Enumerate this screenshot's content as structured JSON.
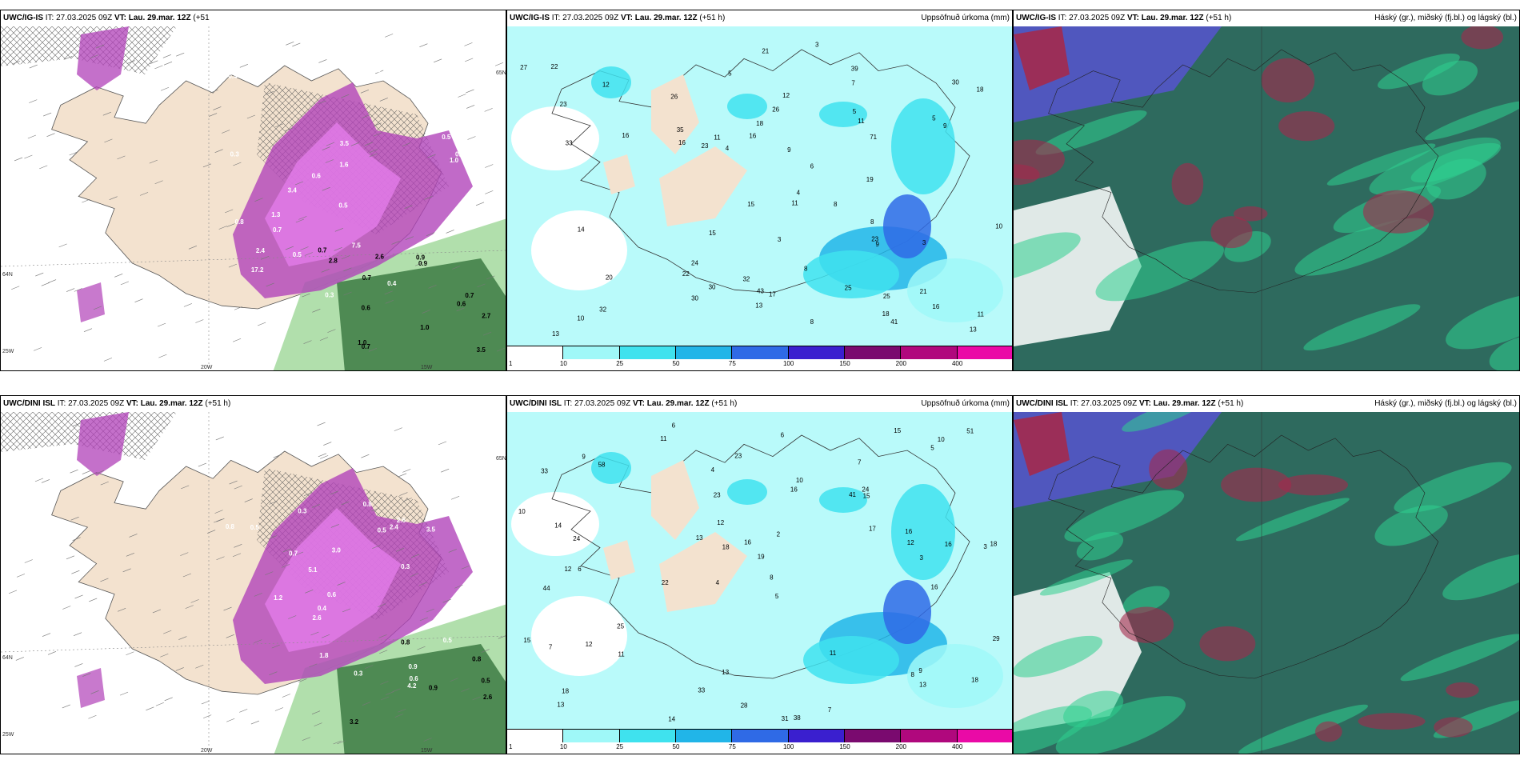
{
  "panels": [
    {
      "id": "p1",
      "header_model": "UWC/IG-IS",
      "header_it": "IT: 27.03.2025 09Z",
      "header_vt_label": "VT:",
      "header_vt": "Lau. 29.mar. 12Z",
      "header_lead": "(+51",
      "header_lead2": "h)",
      "header_right": "",
      "type": "precip-type",
      "axis_labels": [
        "20W",
        "15W",
        "25W",
        "64N",
        "65N"
      ],
      "labels_white": [
        "0.3",
        "0.5",
        "0.4",
        "0.3",
        "0.6",
        "0.3",
        "0.7",
        "2.4",
        "1.6",
        "3.5",
        "17.2",
        "7.5",
        "1.3",
        "3.8",
        "0.5",
        "0.4",
        "0.8",
        "1.0",
        "3.4",
        "1.2",
        "0.9",
        "0.5"
      ],
      "labels_black": [
        "0.6",
        "0.6",
        "0.7",
        "0.7",
        "0.7",
        "2.7",
        "2.8",
        "0.7",
        "1.0",
        "3.5",
        "1.0",
        "2.6",
        "0.9",
        "0.9"
      ]
    },
    {
      "id": "p2",
      "header_model": "UWC/IG-IS",
      "header_it": "IT: 27.03.2025 09Z",
      "header_vt_label": "VT:",
      "header_vt": "Lau. 29.mar. 12Z",
      "header_lead": "(+51 h)",
      "header_right": "Uppsöfnuð úrkoma (mm)",
      "type": "accum",
      "labels": [
        "10",
        "3",
        "4",
        "3",
        "5",
        "3",
        "21",
        "39",
        "25",
        "22",
        "13",
        "16",
        "30",
        "21",
        "25",
        "35",
        "23",
        "14",
        "15",
        "18",
        "27",
        "32",
        "13",
        "8",
        "9",
        "7",
        "11",
        "26",
        "9",
        "8",
        "16",
        "15",
        "12",
        "13",
        "11",
        "8",
        "43",
        "71",
        "33",
        "32",
        "16",
        "24",
        "26",
        "30",
        "19",
        "23",
        "18",
        "17",
        "10",
        "11",
        "23",
        "16",
        "22",
        "18",
        "20",
        "12",
        "5",
        "4",
        "6",
        "8",
        "9",
        "5",
        "11",
        "30",
        "41"
      ]
    },
    {
      "id": "p3",
      "header_model": "UWC/IG-IS",
      "header_it": "IT: 27.03.2025 09Z",
      "header_vt_label": "VT:",
      "header_vt": "Lau. 29.mar. 12Z",
      "header_lead": "(+51 h)",
      "header_right": "Háský (gr.), miðský (fj.bl.) og lágský (bl.)",
      "type": "clouds"
    },
    {
      "id": "p4",
      "header_model": "UWC/DINI ISL",
      "header_it": "IT: 27.03.2025 09Z",
      "header_vt_label": "VT:",
      "header_vt": "Lau. 29.mar. 12Z",
      "header_lead": "(+51 h)",
      "header_right": "",
      "type": "precip-type",
      "axis_labels": [
        "20W",
        "15W",
        "25W",
        "64N",
        "65N"
      ],
      "labels_white": [
        "0.3",
        "0.5",
        "0.6",
        "0.3",
        "0.8",
        "1.8",
        "2.6",
        "3.0",
        "2.4",
        "0.9",
        "0.6",
        "0.5",
        "0.7",
        "0.3",
        "0.8",
        "1.2",
        "0.4",
        "3.5",
        "0.5",
        "5.1",
        "4.2",
        "2.6"
      ],
      "labels_black": [
        "0.8",
        "0.9",
        "0.5",
        "3.2",
        "0.8",
        "2.6"
      ]
    },
    {
      "id": "p5",
      "header_model": "UWC/DINI ISL",
      "header_it": "IT: 27.03.2025 09Z",
      "header_vt_label": "VT:",
      "header_vt": "Lau. 29.mar. 12Z",
      "header_lead": "(+51 h)",
      "header_right": "Uppsöfnuð úrkoma (mm)",
      "type": "accum",
      "labels": [
        "6",
        "7",
        "3",
        "4",
        "5",
        "6",
        "33",
        "41",
        "44",
        "16",
        "19",
        "13",
        "11",
        "22",
        "31",
        "38",
        "13",
        "15",
        "17",
        "25",
        "24",
        "12",
        "18",
        "16",
        "15",
        "14",
        "18",
        "12",
        "9",
        "7",
        "8",
        "10",
        "12",
        "13",
        "11",
        "29",
        "16",
        "33",
        "51",
        "23",
        "18",
        "14",
        "7",
        "9",
        "28",
        "15",
        "13",
        "24",
        "10",
        "8",
        "4",
        "3",
        "2",
        "5",
        "6",
        "11",
        "12",
        "16",
        "10",
        "23",
        "18",
        "16",
        "58"
      ]
    },
    {
      "id": "p6",
      "header_model": "UWC/DINI ISL",
      "header_it": "IT: 27.03.2025 09Z",
      "header_vt_label": "VT:",
      "header_vt": "Lau. 29.mar. 12Z",
      "header_lead": "(+51 h)",
      "header_right": "Háský (gr.), miðský (fj.bl.) og lágský (bl.)",
      "type": "clouds"
    }
  ],
  "colorbar": {
    "ticks": [
      "1",
      "10",
      "25",
      "50",
      "75",
      "100",
      "150",
      "200",
      "400"
    ],
    "colors": [
      "#ffffff",
      "#9ff8f8",
      "#3fe2ee",
      "#21b5e8",
      "#2f6ae6",
      "#3a1fcf",
      "#7a0a6f",
      "#b0087d",
      "#ea0aa6",
      "#f6b0ee"
    ]
  },
  "colors": {
    "land": "#f3e2cf",
    "sea_accum": "#b9fafa",
    "purple": "#b040b8",
    "magenta": "#e07ae8",
    "green_dark": "#2e6e35",
    "green_light": "#a9dca3",
    "cloud_dark": "#2e6a5e",
    "cloud_green": "#2fcf8f",
    "cloud_red": "#a32a4c",
    "cloud_blue": "#5455c9"
  }
}
